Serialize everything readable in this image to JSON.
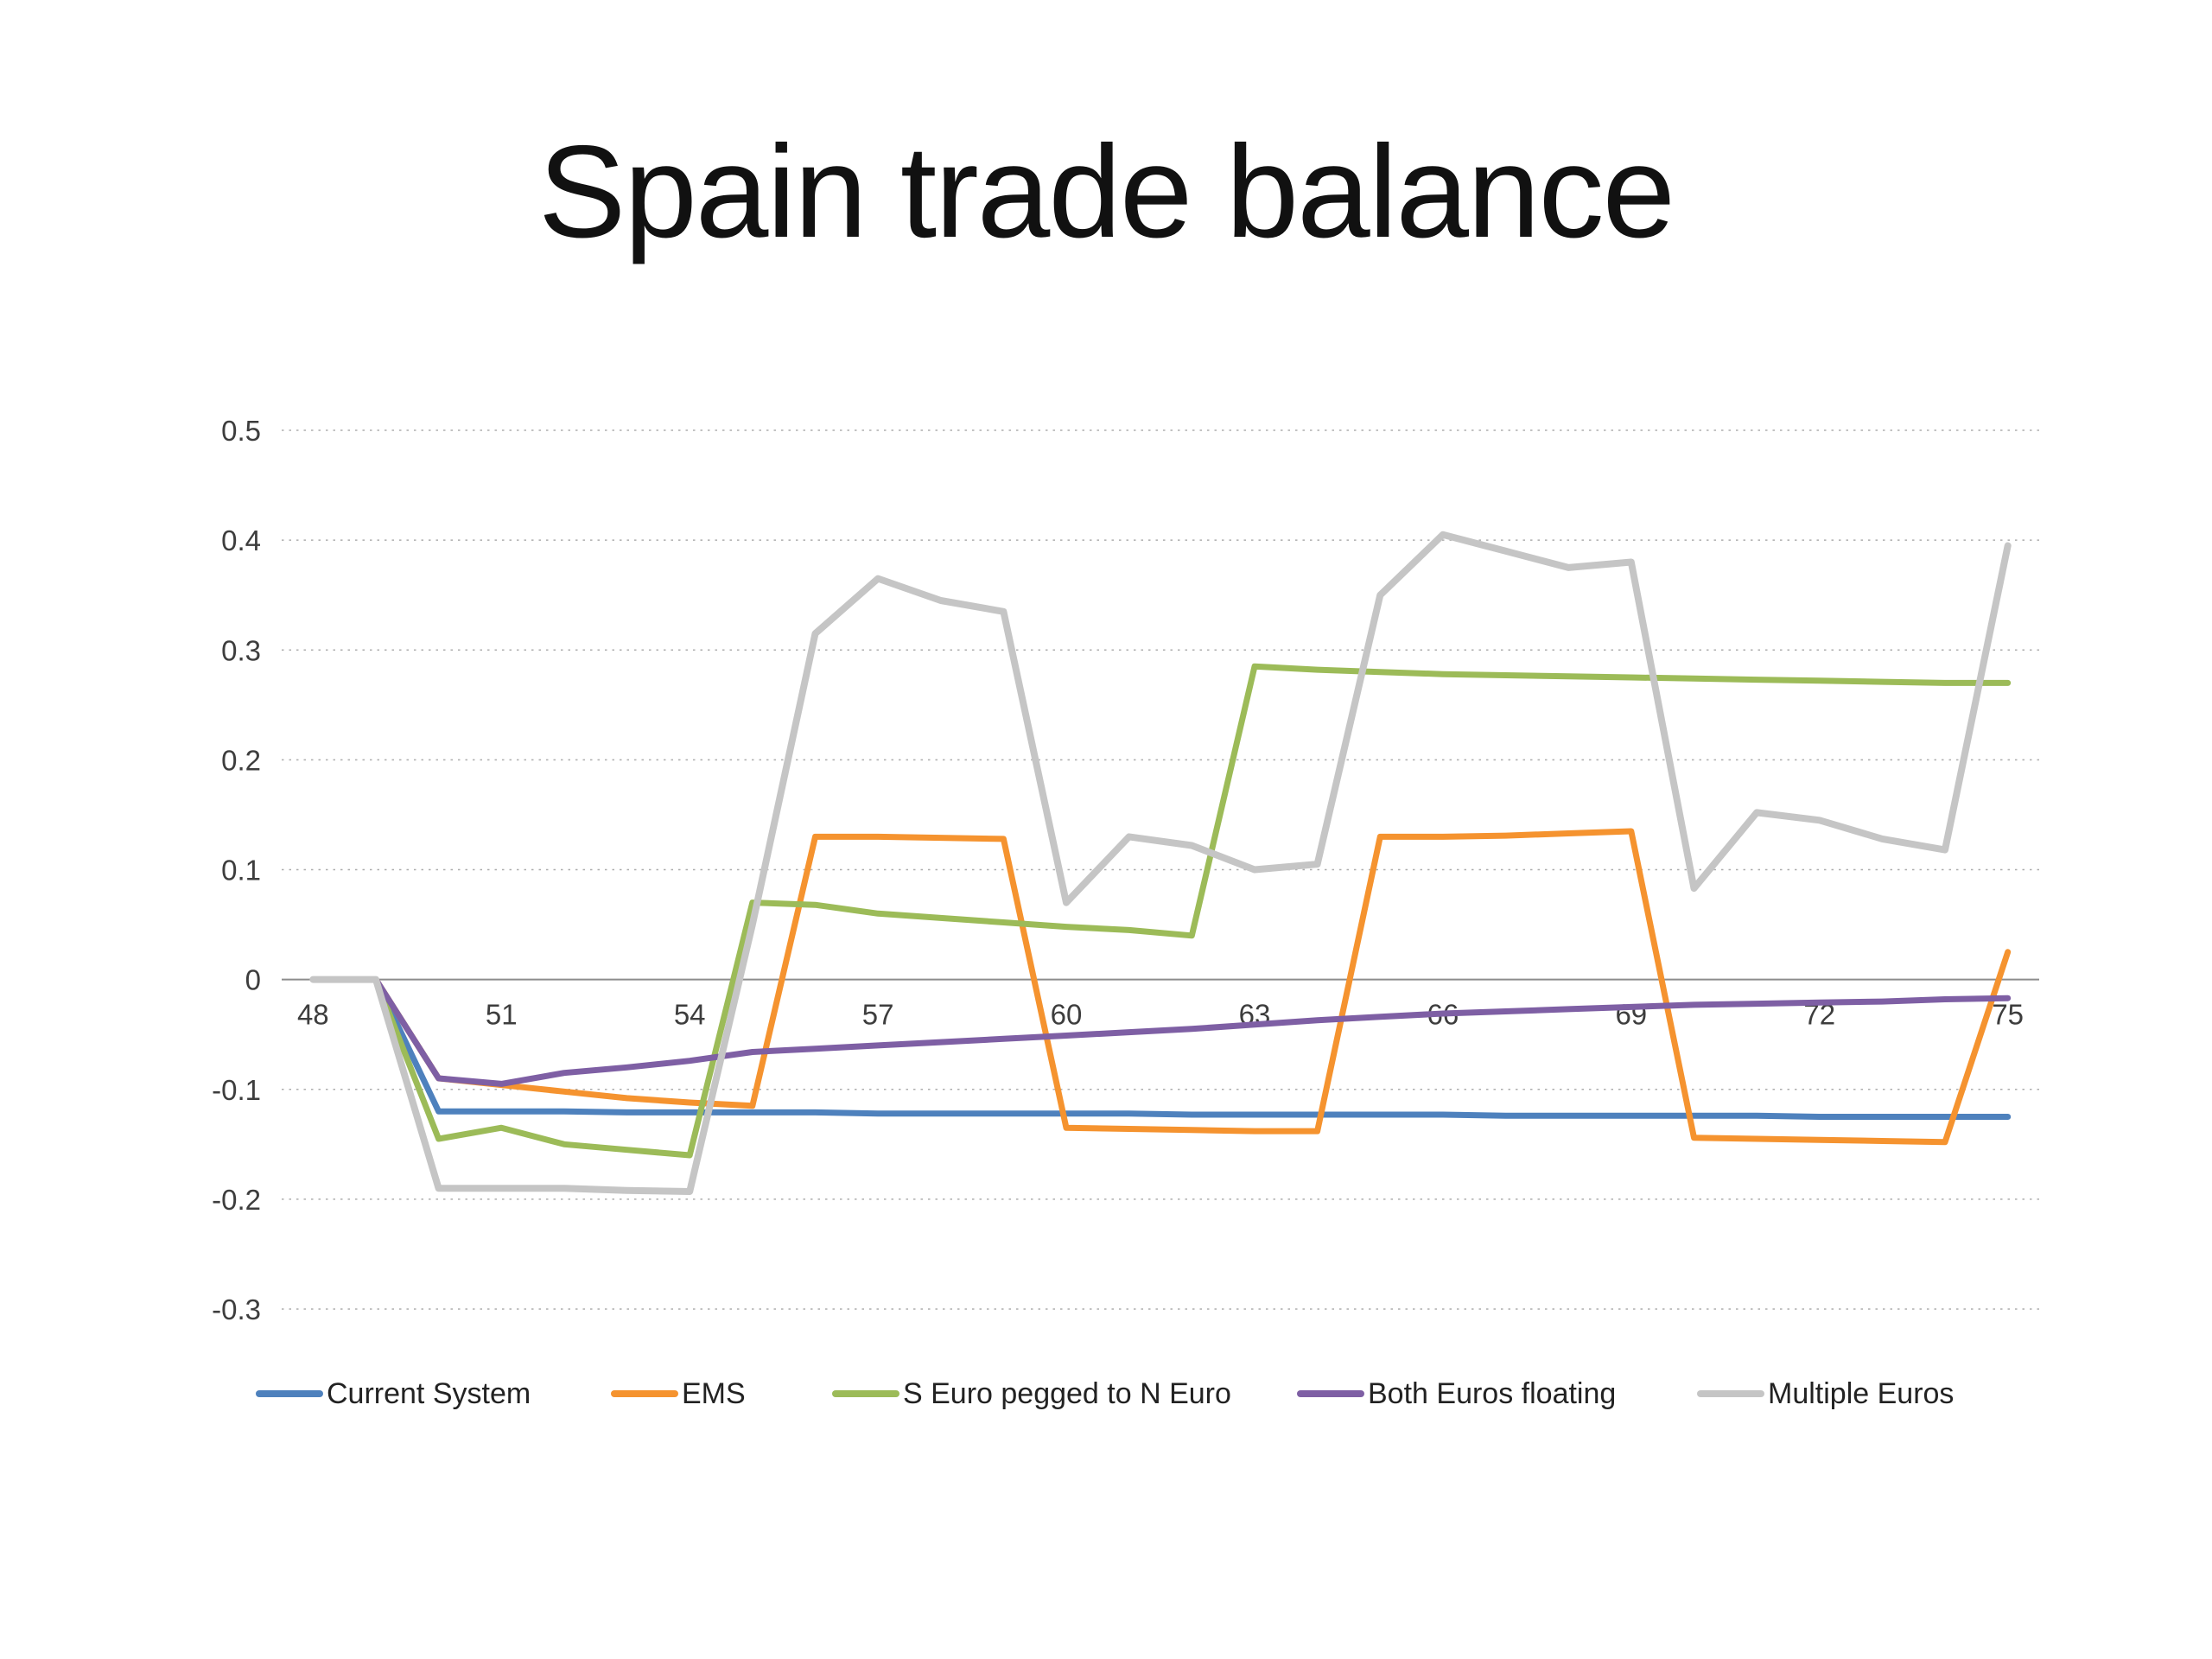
{
  "chart_data": {
    "type": "line",
    "title": "Spain trade balance",
    "xlabel": "",
    "ylabel": "",
    "grid": "horizontal-dotted",
    "legend_position": "bottom",
    "ylim": [
      -0.3,
      0.5
    ],
    "x": [
      48,
      49,
      50,
      51,
      52,
      53,
      54,
      55,
      56,
      57,
      58,
      59,
      60,
      61,
      62,
      63,
      64,
      65,
      66,
      67,
      68,
      69,
      70,
      71,
      72,
      73,
      74,
      75
    ],
    "x_tick_values": [
      48,
      51,
      54,
      57,
      60,
      63,
      66,
      69,
      72,
      75
    ],
    "x_tick_labels": [
      "48",
      "51",
      "54",
      "57",
      "60",
      "63",
      "66",
      "69",
      "72",
      "75"
    ],
    "y_tick_labels": [
      "0.5",
      "0.4",
      "0.3",
      "0.2",
      "0.1",
      "0",
      "-0.1",
      "-0.2",
      "-0.3"
    ],
    "series": [
      {
        "name": "Current System",
        "color": "#4E81BD",
        "values": [
          0,
          0,
          -0.12,
          -0.12,
          -0.12,
          -0.121,
          -0.121,
          -0.121,
          -0.121,
          -0.122,
          -0.122,
          -0.122,
          -0.122,
          -0.122,
          -0.123,
          -0.123,
          -0.123,
          -0.123,
          -0.123,
          -0.124,
          -0.124,
          -0.124,
          -0.124,
          -0.124,
          -0.125,
          -0.125,
          -0.125,
          -0.125
        ]
      },
      {
        "name": "EMS",
        "color": "#F5932F",
        "values": [
          0,
          0,
          -0.09,
          -0.096,
          -0.102,
          -0.108,
          -0.112,
          -0.115,
          0.13,
          0.13,
          0.129,
          0.128,
          -0.135,
          -0.136,
          -0.137,
          -0.138,
          -0.138,
          0.13,
          0.13,
          0.131,
          0.133,
          0.135,
          -0.144,
          -0.145,
          -0.146,
          -0.147,
          -0.148,
          0.025
        ]
      },
      {
        "name": "S Euro pegged to N Euro",
        "color": "#9CBB58",
        "values": [
          0,
          0,
          -0.145,
          -0.135,
          -0.15,
          -0.155,
          -0.16,
          0.07,
          0.068,
          0.06,
          0.056,
          0.052,
          0.048,
          0.045,
          0.04,
          0.285,
          0.282,
          0.28,
          0.278,
          0.277,
          0.276,
          0.275,
          0.274,
          0.273,
          0.272,
          0.271,
          0.27,
          0.27
        ]
      },
      {
        "name": "Both Euros floating",
        "color": "#7E5FA4",
        "values": [
          0,
          0,
          -0.09,
          -0.095,
          -0.085,
          -0.08,
          -0.074,
          -0.066,
          -0.063,
          -0.06,
          -0.057,
          -0.054,
          -0.051,
          -0.048,
          -0.045,
          -0.041,
          -0.037,
          -0.034,
          -0.031,
          -0.029,
          -0.027,
          -0.025,
          -0.023,
          -0.022,
          -0.021,
          -0.02,
          -0.018,
          -0.017
        ]
      },
      {
        "name": "Multiple Euros",
        "color": "#C5C5C5",
        "values": [
          0,
          0,
          -0.19,
          -0.19,
          -0.19,
          -0.192,
          -0.193,
          0.05,
          0.315,
          0.365,
          0.345,
          0.335,
          0.07,
          0.13,
          0.122,
          0.1,
          0.105,
          0.35,
          0.405,
          0.39,
          0.375,
          0.38,
          0.083,
          0.152,
          0.145,
          0.128,
          0.118,
          0.395
        ]
      }
    ]
  }
}
